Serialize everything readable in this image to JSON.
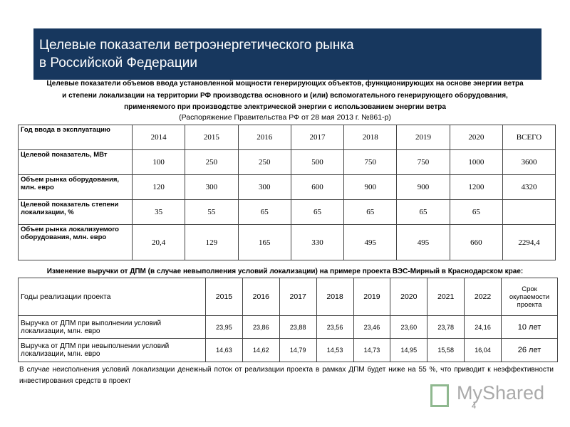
{
  "header": {
    "title": [
      "Целевые показатели ветроэнергетического рынка",
      "в Российской Федерации"
    ]
  },
  "subtitle": [
    "Целевые показатели объемов ввода установленной мощности генерирующих объектов, функционирующих на основе энергии ветра",
    "и степени локализации на территории РФ производства основного и (или) вспомогательного генерирующего оборудования,",
    "применяемого при производстве электрической энергии с использованием энергии ветра"
  ],
  "source": "(Распоряжение Правительства РФ от 28 мая 2013 г. №861-р)",
  "table1": {
    "header": [
      "Год ввода в эксплуатацию",
      "2014",
      "2015",
      "2016",
      "2017",
      "2018",
      "2019",
      "2020",
      "ВСЕГО"
    ],
    "rows": [
      [
        "Целевой показатель, МВт",
        "100",
        "250",
        "250",
        "500",
        "750",
        "750",
        "1000",
        "3600"
      ],
      [
        "Объем рынка оборудования, млн. евро",
        "120",
        "300",
        "300",
        "600",
        "900",
        "900",
        "1200",
        "4320"
      ],
      [
        "Целевой показатель степени локализации, %",
        "35",
        "55",
        "65",
        "65",
        "65",
        "65",
        "65",
        null
      ],
      [
        "Объем рынка локализуемого оборудования, млн. евро",
        "20,4",
        "129",
        "165",
        "330",
        "495",
        "495",
        "660",
        "2294,4"
      ]
    ]
  },
  "caption": "Изменение выручки от ДПМ (в случае невыполнения условий локализации) на примере проекта ВЭС-Мирный в Краснодарском крае:",
  "table2": {
    "header": [
      "Годы реализации проекта",
      "2015",
      "2016",
      "2017",
      "2018",
      "2019",
      "2020",
      "2021",
      "2022",
      "Срок окупаемости проекта"
    ],
    "rows": [
      [
        "Выручка от ДПМ при выполнении условий локализации, млн. евро",
        "23,95",
        "23,86",
        "23,88",
        "23,56",
        "23,46",
        "23,60",
        "23,78",
        "24,16",
        "10 лет"
      ],
      [
        "Выручка от ДПМ при невыполнении условий локализации, млн. евро",
        "14,63",
        "14,62",
        "14,79",
        "14,53",
        "14,73",
        "14,95",
        "15,58",
        "16,04",
        "26 лет"
      ]
    ]
  },
  "note": "В случае неисполнения условий локализации денежный поток от реализации проекта в рамках ДПМ будет ниже на 55 %, что приводит к неэффективности инвестирования средств в проект",
  "watermark": "MyShared",
  "page_number": "4"
}
